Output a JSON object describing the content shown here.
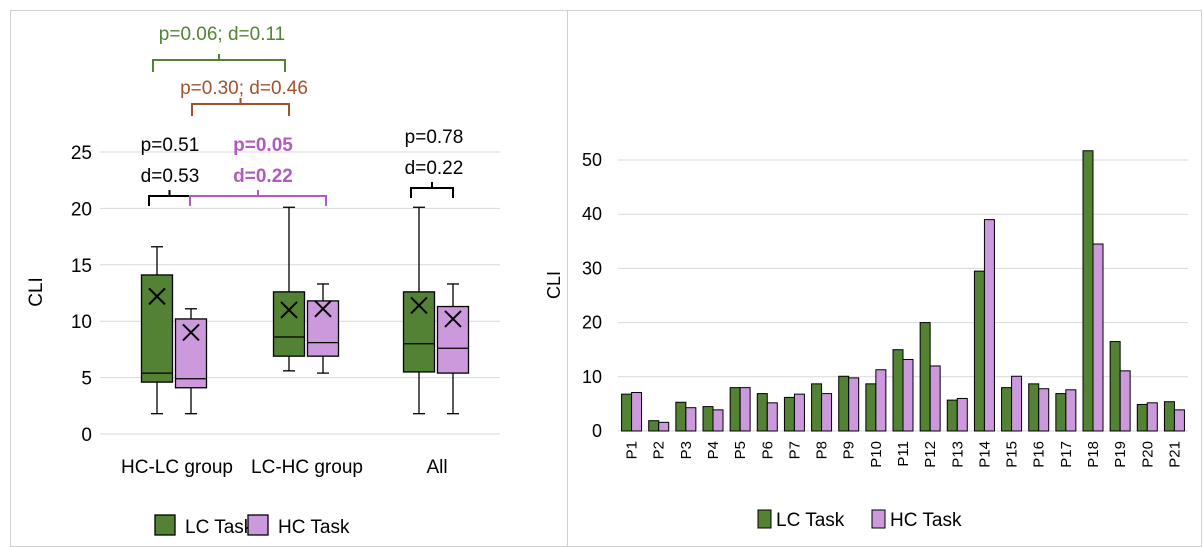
{
  "colors": {
    "lc": "#548235",
    "hc": "#CC99DD",
    "grid": "#d9d9d9",
    "axis_text": "#000000",
    "stat_green": "#548235",
    "stat_brown": "#A0522D",
    "stat_purple": "#B05BBF"
  },
  "chart_data": [
    {
      "type": "box",
      "ylabel": "CLI",
      "ylim": [
        0,
        25
      ],
      "yticks": [
        0,
        5,
        10,
        15,
        20,
        25
      ],
      "categories": [
        "HC-LC group",
        "LC-HC group",
        "All"
      ],
      "series": [
        {
          "name": "LC Task",
          "boxes": [
            {
              "min": 1.8,
              "q1": 4.6,
              "median": 5.4,
              "q3": 14.1,
              "max": 16.6,
              "mean": 12.2
            },
            {
              "min": 5.6,
              "q1": 6.9,
              "median": 8.6,
              "q3": 12.6,
              "max": 20.1,
              "mean": 11.0
            },
            {
              "min": 1.8,
              "q1": 5.5,
              "median": 8.0,
              "q3": 12.6,
              "max": 20.1,
              "mean": 11.4
            }
          ]
        },
        {
          "name": "HC Task",
          "boxes": [
            {
              "min": 1.8,
              "q1": 4.1,
              "median": 4.9,
              "q3": 10.2,
              "max": 11.1,
              "mean": 9.0
            },
            {
              "min": 5.4,
              "q1": 6.9,
              "median": 8.1,
              "q3": 11.8,
              "max": 13.3,
              "mean": 11.1
            },
            {
              "min": 1.8,
              "q1": 5.4,
              "median": 7.6,
              "q3": 11.3,
              "max": 13.3,
              "mean": 10.2
            }
          ]
        }
      ],
      "annotations": [
        {
          "id": "hclc",
          "lines": [
            "p=0.51",
            "d=0.53"
          ],
          "color_key": "axis_text",
          "bold": false
        },
        {
          "id": "lchc",
          "lines": [
            "p=0.05",
            "d=0.22"
          ],
          "color_key": "stat_purple",
          "bold": true
        },
        {
          "id": "all",
          "lines": [
            "p=0.78",
            "d=0.22"
          ],
          "color_key": "axis_text",
          "bold": false
        },
        {
          "id": "between_hc",
          "lines": [
            "p=0.30; d=0.46"
          ],
          "color_key": "stat_brown",
          "bold": false
        },
        {
          "id": "between_lc",
          "lines": [
            "p=0.06; d=0.11"
          ],
          "color_key": "stat_green",
          "bold": false
        }
      ],
      "legend": [
        "LC Task",
        "HC Task"
      ],
      "legend_position": "bottom"
    },
    {
      "type": "bar",
      "ylabel": "CLI",
      "ylim": [
        0,
        50
      ],
      "yticks": [
        0,
        10,
        20,
        30,
        40,
        50
      ],
      "categories": [
        "P1",
        "P2",
        "P3",
        "P4",
        "P5",
        "P6",
        "P7",
        "P8",
        "P9",
        "P10",
        "P11",
        "P12",
        "P13",
        "P14",
        "P15",
        "P16",
        "P17",
        "P18",
        "P19",
        "P20",
        "P21"
      ],
      "series": [
        {
          "name": "LC Task",
          "values": [
            6.8,
            1.9,
            5.3,
            4.5,
            8.0,
            6.9,
            6.2,
            8.7,
            10.1,
            8.7,
            15.0,
            20.0,
            5.7,
            29.5,
            8.0,
            8.7,
            6.9,
            51.7,
            16.5,
            4.9,
            5.4
          ]
        },
        {
          "name": "HC Task",
          "values": [
            7.1,
            1.6,
            4.3,
            3.9,
            8.0,
            5.2,
            6.8,
            6.9,
            9.8,
            11.3,
            13.2,
            12.0,
            6.0,
            39.0,
            10.1,
            7.8,
            7.6,
            34.5,
            11.1,
            5.2,
            3.9
          ]
        }
      ],
      "legend": [
        "LC Task",
        "HC Task"
      ],
      "legend_position": "bottom"
    }
  ]
}
